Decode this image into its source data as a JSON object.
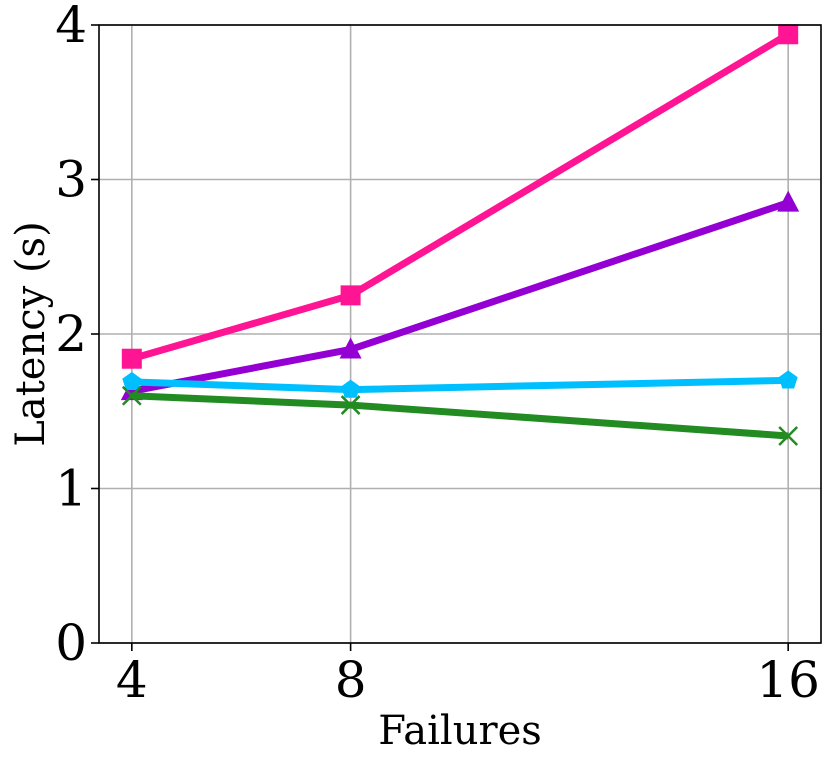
{
  "chart_data": {
    "type": "line",
    "title": "",
    "xlabel": "Failures",
    "ylabel": "Latency (s)",
    "x": [
      4,
      8,
      16
    ],
    "x_ticks": [
      "4",
      "8",
      "16"
    ],
    "y_ticks": [
      "0",
      "1",
      "2",
      "3",
      "4"
    ],
    "xlim": [
      3.4,
      16.6
    ],
    "ylim": [
      0,
      4
    ],
    "grid": true,
    "legend": false,
    "series": [
      {
        "values": [
          1.84,
          2.25,
          3.94
        ],
        "color": "#ff1493",
        "marker": "square"
      },
      {
        "values": [
          1.63,
          1.9,
          2.85
        ],
        "color": "#9400d3",
        "marker": "triangle"
      },
      {
        "values": [
          1.69,
          1.64,
          1.7
        ],
        "color": "#00bfff",
        "marker": "pentagon"
      },
      {
        "values": [
          1.6,
          1.54,
          1.34
        ],
        "color": "#228b22",
        "marker": "x"
      }
    ]
  }
}
